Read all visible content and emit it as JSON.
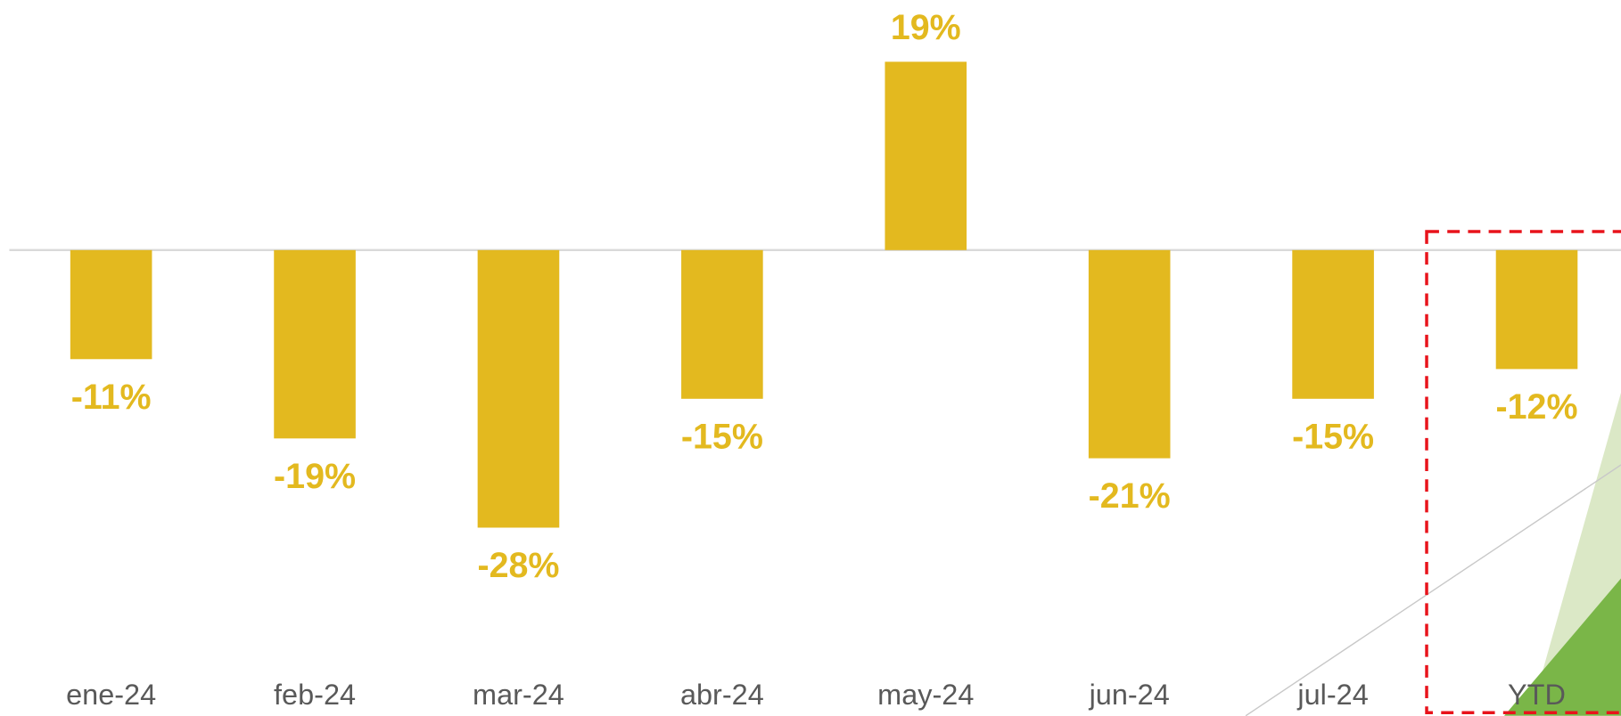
{
  "chart_data": {
    "type": "bar",
    "categories": [
      "ene-24",
      "feb-24",
      "mar-24",
      "abr-24",
      "may-24",
      "jun-24",
      "jul-24",
      "YTD"
    ],
    "values": [
      -11,
      -19,
      -28,
      -15,
      19,
      -21,
      -15,
      -12
    ],
    "value_labels": [
      "-11%",
      "-19%",
      "-28%",
      "-15%",
      "19%",
      "-21%",
      "-15%",
      "-12%"
    ],
    "color": "#e3b91f",
    "ylim": [
      -40,
      25
    ]
  }
}
